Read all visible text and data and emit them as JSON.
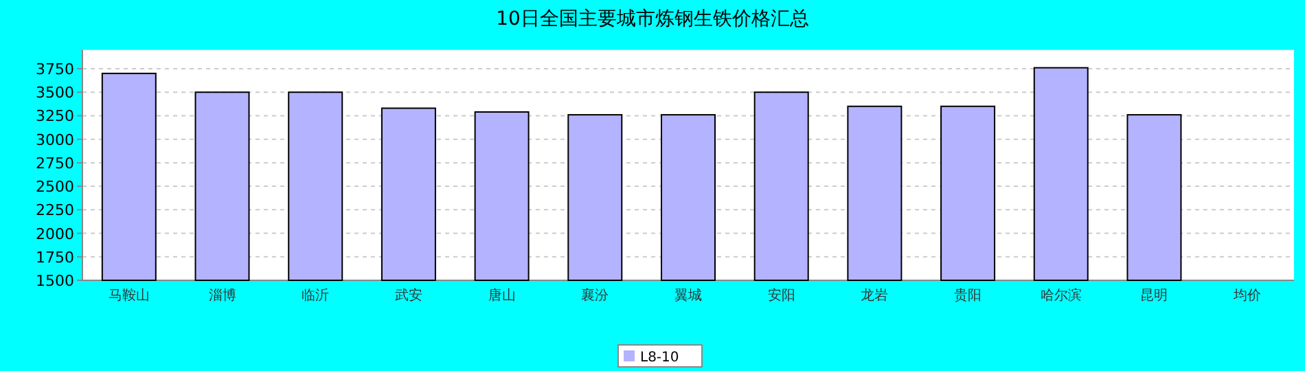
{
  "chart_data": {
    "type": "bar",
    "title": "10日全国主要城市炼钢生铁价格汇总",
    "categories": [
      "马鞍山",
      "淄博",
      "临沂",
      "武安",
      "唐山",
      "襄汾",
      "翼城",
      "安阳",
      "龙岩",
      "贵阳",
      "哈尔滨",
      "昆明",
      "均价"
    ],
    "series": [
      {
        "name": "L8-10",
        "color": "#b3b3ff",
        "values": [
          3700,
          3500,
          3500,
          3330,
          3290,
          3260,
          3260,
          3500,
          3350,
          3350,
          3760,
          3260,
          null
        ]
      }
    ],
    "ylim": [
      1500,
      3950
    ],
    "yticks": [
      1500,
      1750,
      2000,
      2250,
      2500,
      2750,
      3000,
      3250,
      3500,
      3750
    ],
    "grid": "y",
    "legend": "bottom"
  }
}
